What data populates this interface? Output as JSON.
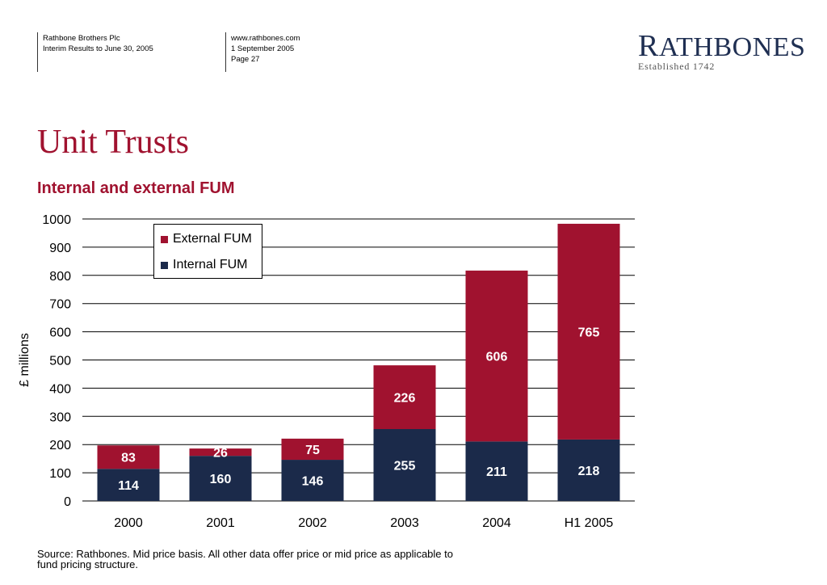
{
  "header": {
    "company": "Rathbone Brothers Plc",
    "report": "Interim Results to June 30, 2005",
    "website": "www.rathbones.com",
    "date": "1 September 2005",
    "page": "Page 27"
  },
  "logo": {
    "first_letter": "R",
    "rest": "ATHBONES",
    "established": "Established 1742"
  },
  "slide_title": "Unit Trusts",
  "source_note": "Source:  Rathbones.  Mid price basis.  All other data offer price or mid price as applicable to fund pricing structure.",
  "colors": {
    "external": "#a0122f",
    "internal": "#1b2a4a",
    "title": "#a0122f"
  },
  "chart_data": {
    "type": "bar",
    "stacked": true,
    "title": "Internal and external FUM",
    "ylabel": "£ millions",
    "xlabel": "",
    "ylim": [
      0,
      1000
    ],
    "yticks": [
      0,
      100,
      200,
      300,
      400,
      500,
      600,
      700,
      800,
      900,
      1000
    ],
    "grid": true,
    "legend_position": "top-left",
    "categories": [
      "2000",
      "2001",
      "2002",
      "2003",
      "2004",
      "H1 2005"
    ],
    "series": [
      {
        "name": "Internal FUM",
        "values": [
          114,
          160,
          146,
          255,
          211,
          218
        ]
      },
      {
        "name": "External FUM",
        "values": [
          83,
          26,
          75,
          226,
          606,
          765
        ]
      }
    ]
  }
}
